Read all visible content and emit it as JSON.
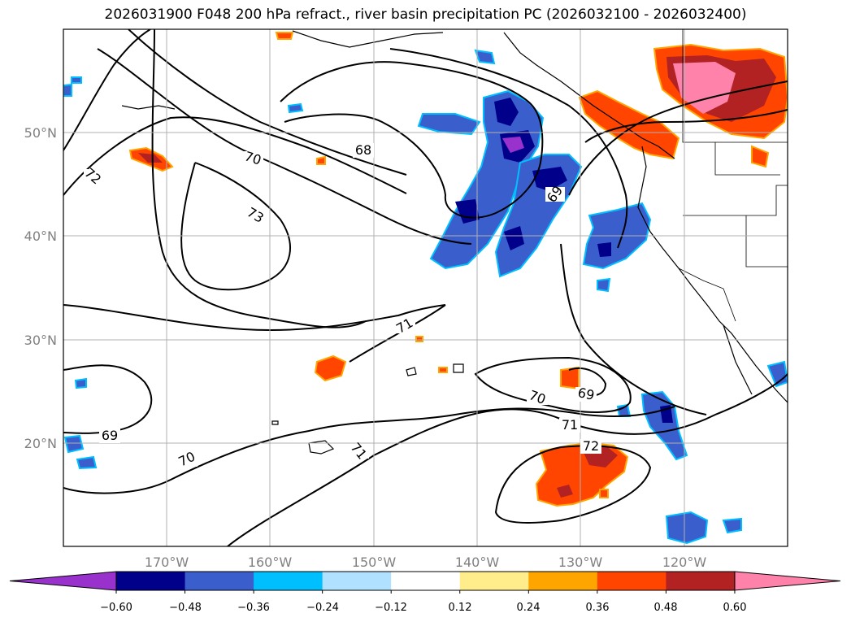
{
  "title": "2026031900 F048 200 hPa refract., river basin precipitation PC (2026032100 - 2026032400)",
  "lat_labels": [
    "50°N",
    "40°N",
    "30°N",
    "20°N"
  ],
  "lon_labels": [
    "170°W",
    "160°W",
    "150°W",
    "140°W",
    "130°W",
    "120°W"
  ],
  "contour_labels": [
    "72",
    "70",
    "68",
    "73",
    "69",
    "71",
    "70",
    "69",
    "71",
    "72",
    "69",
    "70",
    "71"
  ],
  "colorbar": {
    "colors": [
      "#9932cc",
      "#00008b",
      "#3a5fcd",
      "#00bfff",
      "#b0e2ff",
      "#ffffff",
      "#ffec8b",
      "#ffa500",
      "#ff4500",
      "#b22222",
      "#ff82ab"
    ],
    "ticks": [
      "−0.60",
      "−0.48",
      "−0.36",
      "−0.24",
      "−0.12",
      "0.12",
      "0.24",
      "0.36",
      "0.48",
      "0.60"
    ]
  },
  "style": {
    "contour_color": "#000000",
    "coast_color": "#000000",
    "grid_color": "#b0b0b0",
    "tick_color": "#808080"
  }
}
